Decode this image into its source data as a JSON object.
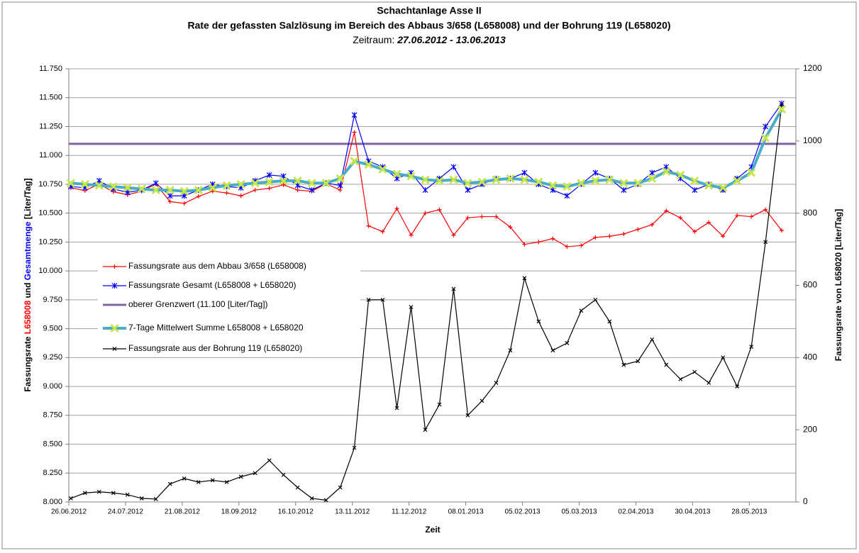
{
  "chart_data": {
    "type": "line",
    "title": "Schachtanlage Asse II",
    "subtitle": "Rate der gefassten Salzlösung im Bereich des Abbaus 3/658 (L658008) und der Bohrung 119 (L658020)",
    "period_label": "Zeitraum:",
    "period": "27.06.2012 - 13.06.2013",
    "x_label": "Zeit",
    "y_label": [
      {
        "text": "Fassungsrate ",
        "color": "#000000"
      },
      {
        "text": "L658008",
        "color": "#ff0000"
      },
      {
        "text": " und ",
        "color": "#000000"
      },
      {
        "text": "Gesamtmenge",
        "color": "#0000ff"
      },
      {
        "text": " [Liter/Tag]",
        "color": "#000000"
      }
    ],
    "y2_label": "Fassungsrate von L658020 [Liter/Tag]",
    "x": [
      "27.06.2012",
      "04.07.2012",
      "11.07.2012",
      "18.07.2012",
      "25.07.2012",
      "01.08.2012",
      "08.08.2012",
      "15.08.2012",
      "22.08.2012",
      "29.08.2012",
      "05.09.2012",
      "12.09.2012",
      "19.09.2012",
      "26.09.2012",
      "03.10.2012",
      "10.10.2012",
      "17.10.2012",
      "24.10.2012",
      "31.10.2012",
      "07.11.2012",
      "14.11.2012",
      "21.11.2012",
      "28.11.2012",
      "05.12.2012",
      "12.12.2012",
      "19.12.2012",
      "26.12.2012",
      "02.01.2013",
      "09.01.2013",
      "16.01.2013",
      "23.01.2013",
      "30.01.2013",
      "06.02.2013",
      "13.02.2013",
      "20.02.2013",
      "27.02.2013",
      "06.03.2013",
      "13.03.2013",
      "20.03.2013",
      "27.03.2013",
      "03.04.2013",
      "10.04.2013",
      "17.04.2013",
      "24.04.2013",
      "01.05.2013",
      "08.05.2013",
      "15.05.2013",
      "22.05.2013",
      "29.05.2013",
      "05.06.2013",
      "13.06.2013"
    ],
    "xlim": [
      "26.06.2012",
      "20.06.2013"
    ],
    "xticks": [
      "26.06.2012",
      "24.07.2012",
      "21.08.2012",
      "18.09.2012",
      "16.10.2012",
      "13.11.2012",
      "11.12.2012",
      "08.01.2013",
      "05.02.2013",
      "05.03.2013",
      "02.04.2013",
      "30.04.2013",
      "28.05.2013"
    ],
    "ylim": [
      8000,
      11750
    ],
    "yticks": [
      {
        "value": 8000,
        "label": "8.000"
      },
      {
        "value": 8250,
        "label": "8.250"
      },
      {
        "value": 8500,
        "label": "8.500"
      },
      {
        "value": 8750,
        "label": "8.750"
      },
      {
        "value": 9000,
        "label": "9.000"
      },
      {
        "value": 9250,
        "label": "9.250"
      },
      {
        "value": 9500,
        "label": "9.500"
      },
      {
        "value": 9750,
        "label": "9.750"
      },
      {
        "value": 10000,
        "label": "10.000"
      },
      {
        "value": 10250,
        "label": "10.250"
      },
      {
        "value": 10500,
        "label": "10.500"
      },
      {
        "value": 10750,
        "label": "10.750"
      },
      {
        "value": 11000,
        "label": "11.000"
      },
      {
        "value": 11250,
        "label": "11.250"
      },
      {
        "value": 11500,
        "label": "11.500"
      },
      {
        "value": 11750,
        "label": "11.750"
      }
    ],
    "y2lim": [
      0,
      1200
    ],
    "y2ticks": [
      0,
      200,
      400,
      600,
      800,
      1000,
      1200
    ],
    "grid": true,
    "series": [
      {
        "name": "Fassungsrate aus dem Abbau 3/658 (L658008)",
        "color": "#ff0000",
        "marker": "plus",
        "values": [
          10720,
          10695,
          10752,
          10685,
          10660,
          10690,
          10752,
          10600,
          10585,
          10645,
          10690,
          10675,
          10650,
          10700,
          10715,
          10745,
          10700,
          10690,
          10755,
          10700,
          11200,
          10390,
          10340,
          10540,
          10310,
          10500,
          10530,
          10310,
          10460,
          10470,
          10470,
          10380,
          10230,
          10250,
          10280,
          10210,
          10220,
          10290,
          10300,
          10320,
          10360,
          10400,
          10520,
          10460,
          10340,
          10420,
          10300,
          10480,
          10470,
          10530,
          10350
        ]
      },
      {
        "name": "Fassungsrate Gesamt (L658008 + L658020)",
        "color": "#0000ff",
        "marker": "star",
        "values": [
          10730,
          10720,
          10780,
          10710,
          10680,
          10700,
          10760,
          10650,
          10650,
          10700,
          10750,
          10730,
          10720,
          10780,
          10830,
          10820,
          10740,
          10700,
          10760,
          10740,
          11350,
          10950,
          10900,
          10800,
          10850,
          10700,
          10800,
          10900,
          10700,
          10750,
          10800,
          10800,
          10850,
          10750,
          10700,
          10650,
          10750,
          10850,
          10800,
          10700,
          10750,
          10850,
          10900,
          10800,
          10700,
          10750,
          10700,
          10800,
          10900,
          11250,
          11450
        ]
      },
      {
        "name": "oberer Grenzwert (11.100 [Liter/Tag])",
        "color": "#8064a2",
        "value": 11100
      },
      {
        "name": "7-Tage Mittelwert Summe L658008 + L658020",
        "color": "#4bacc6",
        "marker_color": "#c8e64c",
        "marker": "cross",
        "values": [
          10760,
          10750,
          10740,
          10730,
          10720,
          10710,
          10700,
          10700,
          10690,
          10700,
          10720,
          10740,
          10750,
          10760,
          10770,
          10780,
          10780,
          10760,
          10760,
          10800,
          10950,
          10920,
          10880,
          10840,
          10820,
          10790,
          10780,
          10790,
          10760,
          10770,
          10790,
          10800,
          10790,
          10770,
          10740,
          10730,
          10760,
          10780,
          10790,
          10760,
          10760,
          10800,
          10860,
          10830,
          10780,
          10740,
          10720,
          10780,
          10850,
          11150,
          11400
        ]
      },
      {
        "name": "Fassungsrate aus der Bohrung 119 (L658020)",
        "color": "#000000",
        "marker": "x",
        "axis": "y2",
        "values": [
          10,
          25,
          28,
          25,
          20,
          10,
          8,
          50,
          65,
          55,
          60,
          55,
          70,
          80,
          115,
          75,
          40,
          10,
          5,
          40,
          150,
          560,
          560,
          260,
          540,
          200,
          270,
          590,
          240,
          280,
          330,
          420,
          620,
          500,
          420,
          440,
          530,
          560,
          500,
          380,
          390,
          450,
          380,
          340,
          360,
          330,
          400,
          320,
          430,
          720,
          1100
        ]
      }
    ]
  }
}
